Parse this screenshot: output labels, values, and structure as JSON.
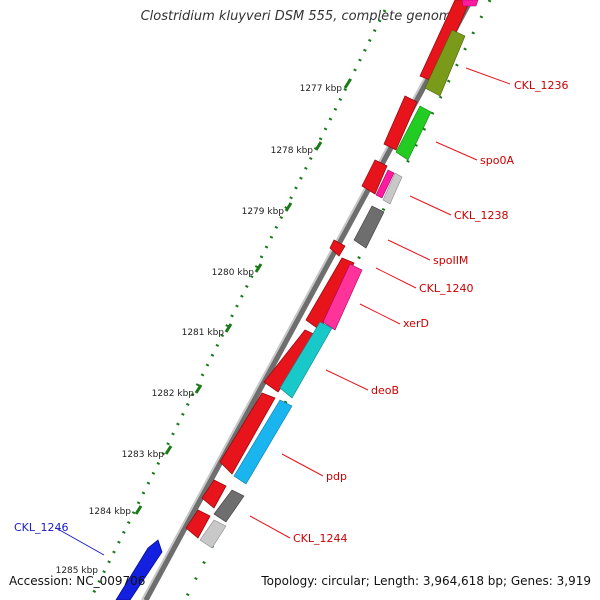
{
  "title": "Clostridium kluyveri DSM 555, complete genome",
  "accession": "Accession: NC_009706",
  "summary": "Topology: circular; Length: 3,964,618 bp; Genes: 3,919",
  "colors": {
    "backbone": "#8a8a8a",
    "forward_feature": "#e8141c",
    "reverse_feature": "#1420e0",
    "ruler_dots": "#1a7a1a",
    "label_line": "#e8141c",
    "label_text": "#cc0000",
    "reverse_label_text": "#1a1acc"
  },
  "ruler_labels": [
    "1277 kbp",
    "1278 kbp",
    "1279 kbp",
    "1280 kbp",
    "1281 kbp",
    "1282 kbp",
    "1283 kbp",
    "1284 kbp",
    "1285 kbp"
  ],
  "gene_labels": [
    {
      "text": "CKL_1236",
      "strand": "forward"
    },
    {
      "text": "spo0A",
      "strand": "forward"
    },
    {
      "text": "CKL_1238",
      "strand": "forward"
    },
    {
      "text": "spoIIM",
      "strand": "forward"
    },
    {
      "text": "CKL_1240",
      "strand": "forward"
    },
    {
      "text": "xerD",
      "strand": "forward"
    },
    {
      "text": "deoB",
      "strand": "forward"
    },
    {
      "text": "pdp",
      "strand": "forward"
    },
    {
      "text": "CKL_1244",
      "strand": "forward"
    },
    {
      "text": "CKL_1246",
      "strand": "reverse"
    }
  ],
  "cog_colors": [
    "#ff1aa0",
    "#7a9a1a",
    "#22cc22",
    "#ff1aa0",
    "#b8b8b8",
    "#6e6e6e",
    "#ff3399",
    "#19c8c8",
    "#1ab4ee",
    "#6e6e6e",
    "#c8c8c8"
  ]
}
